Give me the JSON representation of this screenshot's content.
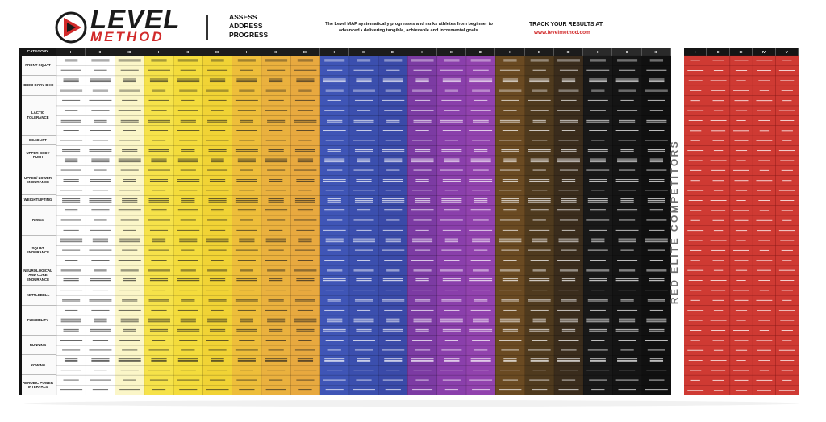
{
  "header": {
    "brand_primary": "LEVEL",
    "brand_secondary": "METHOD",
    "tagline": [
      "ASSESS",
      "ADDRESS",
      "PROGRESS"
    ],
    "description": "The Level MAP systematically progresses and ranks athletes from beginner to advanced • delivering tangible, achievable and incremental goals.",
    "track_label": "TRACK YOUR RESULTS AT:",
    "track_url": "www.levelmethod.com"
  },
  "map": {
    "category_header": "CATEGORY",
    "categories": [
      {
        "label": "FRONT SQUAT",
        "rows": 2
      },
      {
        "label": "UPPER BODY PULL",
        "rows": 2
      },
      {
        "label": "LACTIC TOLERANCE",
        "rows": 4
      },
      {
        "label": "DEADLIFT",
        "rows": 1
      },
      {
        "label": "UPPER BODY PUSH",
        "rows": 2
      },
      {
        "label": "UPPER/ LOWER ENDURANCE",
        "rows": 3
      },
      {
        "label": "WEIGHTLIFTING",
        "rows": 1
      },
      {
        "label": "RINGS",
        "rows": 3
      },
      {
        "label": "SQUAT ENDURANCE",
        "rows": 3
      },
      {
        "label": "NEUROLOGICAL AND CORE ENDURANCE",
        "rows": 2
      },
      {
        "label": "KETTLEBELL",
        "rows": 2
      },
      {
        "label": "FLEXIBILITY",
        "rows": 3
      },
      {
        "label": "RUNNING",
        "rows": 2
      },
      {
        "label": "ROWING",
        "rows": 2
      },
      {
        "label": "AEROBIC POWER INTERVALS",
        "rows": 2
      }
    ],
    "level_columns": [
      {
        "label": "I",
        "color": "#ffffff"
      },
      {
        "label": "II",
        "color": "#ffffff"
      },
      {
        "label": "III",
        "color": "#fbf6c8"
      },
      {
        "label": "I",
        "color": "#f6e24a"
      },
      {
        "label": "II",
        "color": "#f4dc3c"
      },
      {
        "label": "III",
        "color": "#f1d335"
      },
      {
        "label": "I",
        "color": "#eebe3a"
      },
      {
        "label": "II",
        "color": "#eab13e"
      },
      {
        "label": "III",
        "color": "#e8a93f"
      },
      {
        "label": "I",
        "color": "#3f55b6"
      },
      {
        "label": "II",
        "color": "#3b4fae"
      },
      {
        "label": "III",
        "color": "#3a4aa8"
      },
      {
        "label": "I",
        "color": "#7c3ba3"
      },
      {
        "label": "II",
        "color": "#8a3fab"
      },
      {
        "label": "III",
        "color": "#9142ad"
      },
      {
        "label": "I",
        "color": "#6a4a22"
      },
      {
        "label": "II",
        "color": "#4f3a1e"
      },
      {
        "label": "III",
        "color": "#3a2c1c"
      },
      {
        "label": "I",
        "color": "#181818"
      },
      {
        "label": "II",
        "color": "#141414"
      },
      {
        "label": "III",
        "color": "#101010"
      }
    ]
  },
  "red_elite": {
    "label": "RED ELITE COMPETITORS",
    "color": "#cf3a33",
    "columns": [
      "I",
      "II",
      "III",
      "IV",
      "V"
    ]
  }
}
